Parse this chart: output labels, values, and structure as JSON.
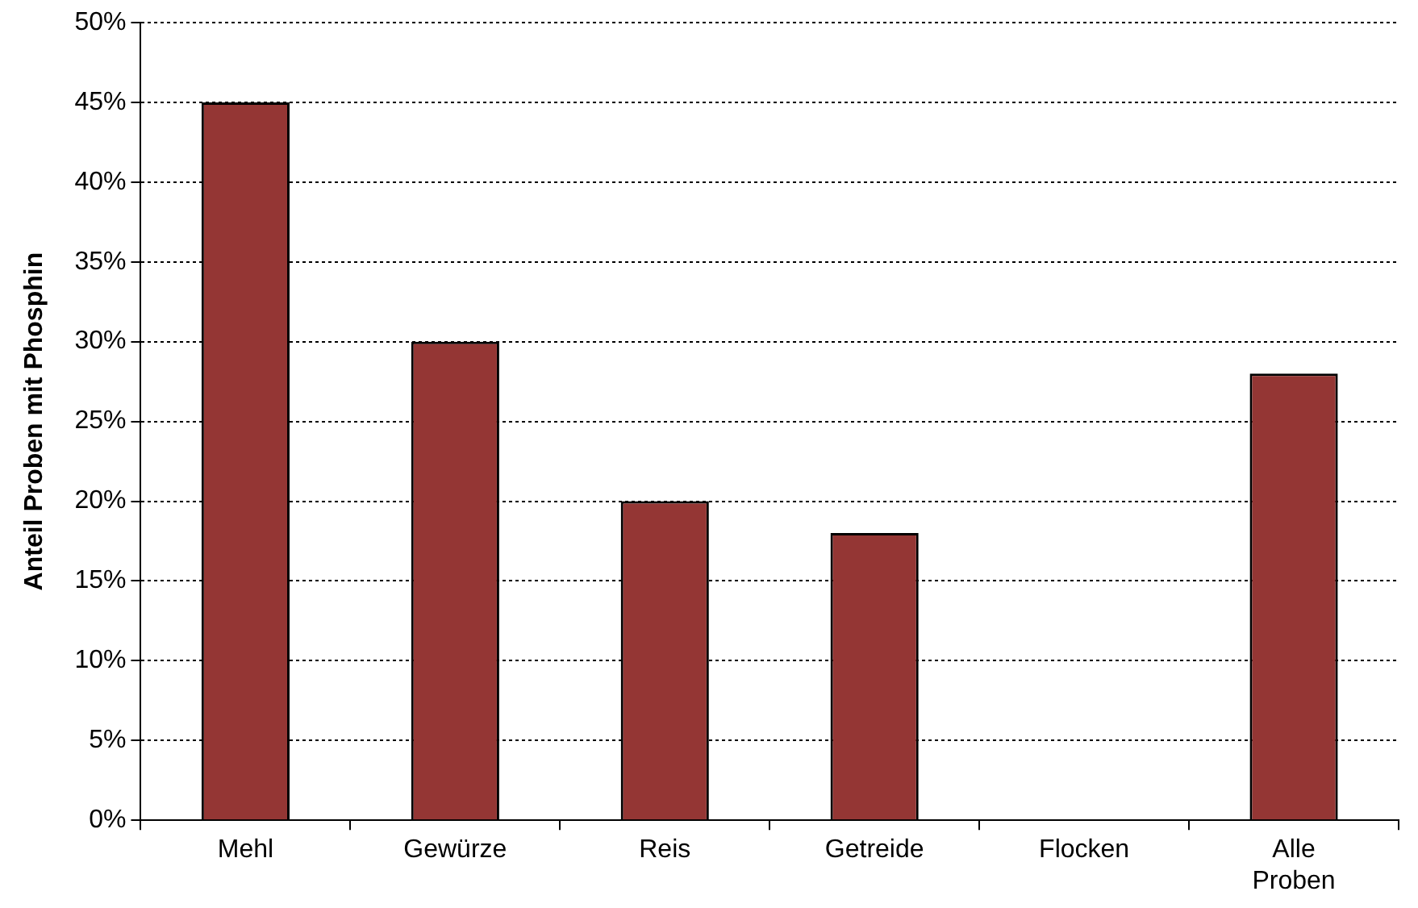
{
  "chart_data": {
    "type": "bar",
    "ylabel": "Anteil Proben mit Phosphin",
    "categories": [
      "Mehl",
      "Gewürze",
      "Reis",
      "Getreide",
      "Flocken",
      "Alle Proben"
    ],
    "values": [
      45,
      30,
      20,
      18,
      0,
      28
    ],
    "color": "#943634",
    "ylim": [
      0,
      50
    ],
    "yticks": [
      {
        "value": 0,
        "label": "0%"
      },
      {
        "value": 5,
        "label": "5%"
      },
      {
        "value": 10,
        "label": "10%"
      },
      {
        "value": 15,
        "label": "15%"
      },
      {
        "value": 20,
        "label": "20%"
      },
      {
        "value": 25,
        "label": "25%"
      },
      {
        "value": 30,
        "label": "30%"
      },
      {
        "value": 35,
        "label": "35%"
      },
      {
        "value": 40,
        "label": "40%"
      },
      {
        "value": 45,
        "label": "45%"
      },
      {
        "value": 50,
        "label": "50%"
      }
    ],
    "grid": "y",
    "legend": false
  }
}
